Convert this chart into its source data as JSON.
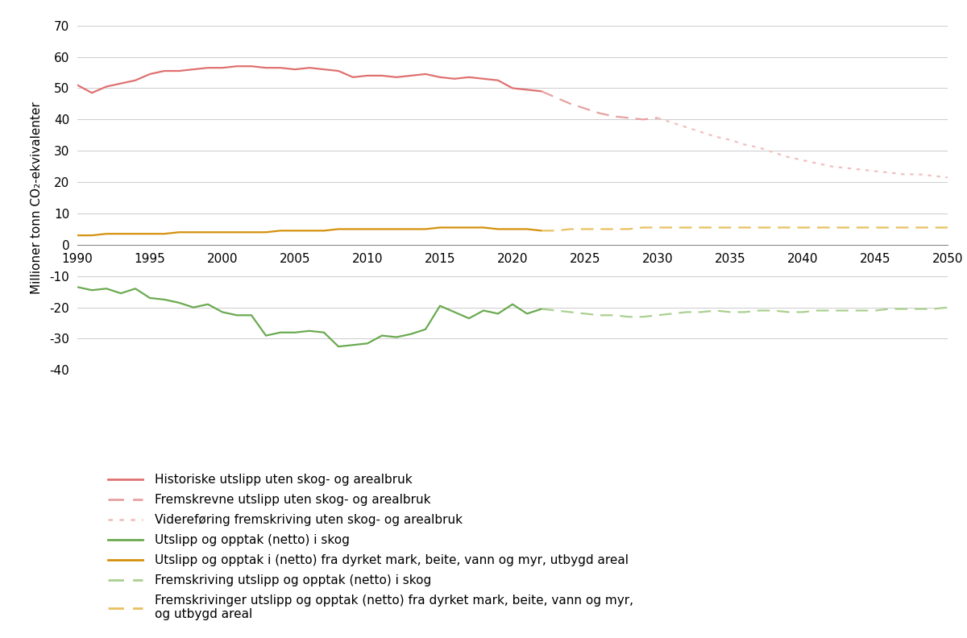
{
  "hist_years": [
    1990,
    1991,
    1992,
    1993,
    1994,
    1995,
    1996,
    1997,
    1998,
    1999,
    2000,
    2001,
    2002,
    2003,
    2004,
    2005,
    2006,
    2007,
    2008,
    2009,
    2010,
    2011,
    2012,
    2013,
    2014,
    2015,
    2016,
    2017,
    2018,
    2019,
    2020,
    2021,
    2022
  ],
  "hist_emissions": [
    51.0,
    48.5,
    50.5,
    51.5,
    52.5,
    54.5,
    55.5,
    55.5,
    56.0,
    56.5,
    56.5,
    57.0,
    57.0,
    56.5,
    56.5,
    56.0,
    56.5,
    56.0,
    55.5,
    53.5,
    54.0,
    54.0,
    53.5,
    54.0,
    54.5,
    53.5,
    53.0,
    53.5,
    53.0,
    52.5,
    50.0,
    49.5,
    49.0
  ],
  "proj_years_dashed": [
    2022,
    2023,
    2024,
    2025,
    2026,
    2027,
    2028,
    2029,
    2030
  ],
  "proj_emissions_dashed": [
    49.0,
    47.0,
    45.0,
    43.5,
    42.0,
    41.0,
    40.5,
    40.0,
    40.5
  ],
  "proj_years_dotted": [
    2030,
    2031,
    2032,
    2033,
    2034,
    2035,
    2036,
    2037,
    2038,
    2039,
    2040,
    2041,
    2042,
    2043,
    2044,
    2045,
    2046,
    2047,
    2048,
    2049,
    2050
  ],
  "proj_emissions_dotted": [
    40.5,
    39.0,
    37.5,
    36.0,
    34.5,
    33.5,
    32.0,
    31.0,
    29.5,
    28.0,
    27.0,
    26.0,
    25.0,
    24.5,
    24.0,
    23.5,
    23.0,
    22.5,
    22.5,
    22.0,
    21.5
  ],
  "hist_years_skog": [
    1990,
    1991,
    1992,
    1993,
    1994,
    1995,
    1996,
    1997,
    1998,
    1999,
    2000,
    2001,
    2002,
    2003,
    2004,
    2005,
    2006,
    2007,
    2008,
    2009,
    2010,
    2011,
    2012,
    2013,
    2014,
    2015,
    2016,
    2017,
    2018,
    2019,
    2020,
    2021,
    2022
  ],
  "hist_skog": [
    -13.5,
    -14.5,
    -14.0,
    -15.5,
    -14.0,
    -17.0,
    -17.5,
    -18.5,
    -20.0,
    -19.0,
    -21.5,
    -22.5,
    -22.5,
    -29.0,
    -28.0,
    -28.0,
    -27.5,
    -28.0,
    -32.5,
    -32.0,
    -31.5,
    -29.0,
    -29.5,
    -28.5,
    -27.0,
    -19.5,
    -21.5,
    -23.5,
    -21.0,
    -22.0,
    -19.0,
    -22.0,
    -20.5
  ],
  "proj_years_skog": [
    2022,
    2023,
    2024,
    2025,
    2026,
    2027,
    2028,
    2029,
    2030,
    2031,
    2032,
    2033,
    2034,
    2035,
    2036,
    2037,
    2038,
    2039,
    2040,
    2041,
    2042,
    2043,
    2044,
    2045,
    2046,
    2047,
    2048,
    2049,
    2050
  ],
  "proj_skog": [
    -20.5,
    -21.0,
    -21.5,
    -22.0,
    -22.5,
    -22.5,
    -23.0,
    -23.0,
    -22.5,
    -22.0,
    -21.5,
    -21.5,
    -21.0,
    -21.5,
    -21.5,
    -21.0,
    -21.0,
    -21.5,
    -21.5,
    -21.0,
    -21.0,
    -21.0,
    -21.0,
    -21.0,
    -20.5,
    -20.5,
    -20.5,
    -20.5,
    -20.0
  ],
  "hist_years_areal": [
    1990,
    1991,
    1992,
    1993,
    1994,
    1995,
    1996,
    1997,
    1998,
    1999,
    2000,
    2001,
    2002,
    2003,
    2004,
    2005,
    2006,
    2007,
    2008,
    2009,
    2010,
    2011,
    2012,
    2013,
    2014,
    2015,
    2016,
    2017,
    2018,
    2019,
    2020,
    2021,
    2022
  ],
  "hist_areal": [
    3.0,
    3.0,
    3.5,
    3.5,
    3.5,
    3.5,
    3.5,
    4.0,
    4.0,
    4.0,
    4.0,
    4.0,
    4.0,
    4.0,
    4.5,
    4.5,
    4.5,
    4.5,
    5.0,
    5.0,
    5.0,
    5.0,
    5.0,
    5.0,
    5.0,
    5.5,
    5.5,
    5.5,
    5.5,
    5.0,
    5.0,
    5.0,
    4.5
  ],
  "proj_years_areal": [
    2022,
    2023,
    2024,
    2025,
    2026,
    2027,
    2028,
    2029,
    2030,
    2031,
    2032,
    2033,
    2034,
    2035,
    2036,
    2037,
    2038,
    2039,
    2040,
    2041,
    2042,
    2043,
    2044,
    2045,
    2046,
    2047,
    2048,
    2049,
    2050
  ],
  "proj_areal": [
    4.5,
    4.5,
    5.0,
    5.0,
    5.0,
    5.0,
    5.0,
    5.5,
    5.5,
    5.5,
    5.5,
    5.5,
    5.5,
    5.5,
    5.5,
    5.5,
    5.5,
    5.5,
    5.5,
    5.5,
    5.5,
    5.5,
    5.5,
    5.5,
    5.5,
    5.5,
    5.5,
    5.5,
    5.5
  ],
  "color_red_solid": "#e07070",
  "color_red_dashed": "#e8a0a0",
  "color_red_dotted": "#f0c0c0",
  "color_green_solid": "#6aaa50",
  "color_green_dashed": "#aad090",
  "color_orange_solid": "#d4900a",
  "color_orange_dashed": "#e8c060",
  "ylabel": "Millioner tonn CO₂-ekvivalenter",
  "ylim": [
    -40,
    70
  ],
  "xlim": [
    1990,
    2050
  ],
  "yticks": [
    -40,
    -30,
    -20,
    -10,
    0,
    10,
    20,
    30,
    40,
    50,
    60,
    70
  ],
  "xticks": [
    1990,
    1995,
    2000,
    2005,
    2010,
    2015,
    2020,
    2025,
    2030,
    2035,
    2040,
    2045,
    2050
  ],
  "legend_labels": [
    "Historiske utslipp uten skog- og arealbruk",
    "Fremskrevne utslipp uten skog- og arealbruk",
    "Videreføring fremskriving uten skog- og arealbruk",
    "Utslipp og opptak (netto) i skog",
    "Utslipp og opptak i (netto) fra dyrket mark, beite, vann og myr, utbygd areal",
    "Fremskriving utslipp og opptak (netto) i skog",
    "Fremskrivinger utslipp og opptak (netto) fra dyrket mark, beite, vann og myr,\nog utbygd areal"
  ]
}
